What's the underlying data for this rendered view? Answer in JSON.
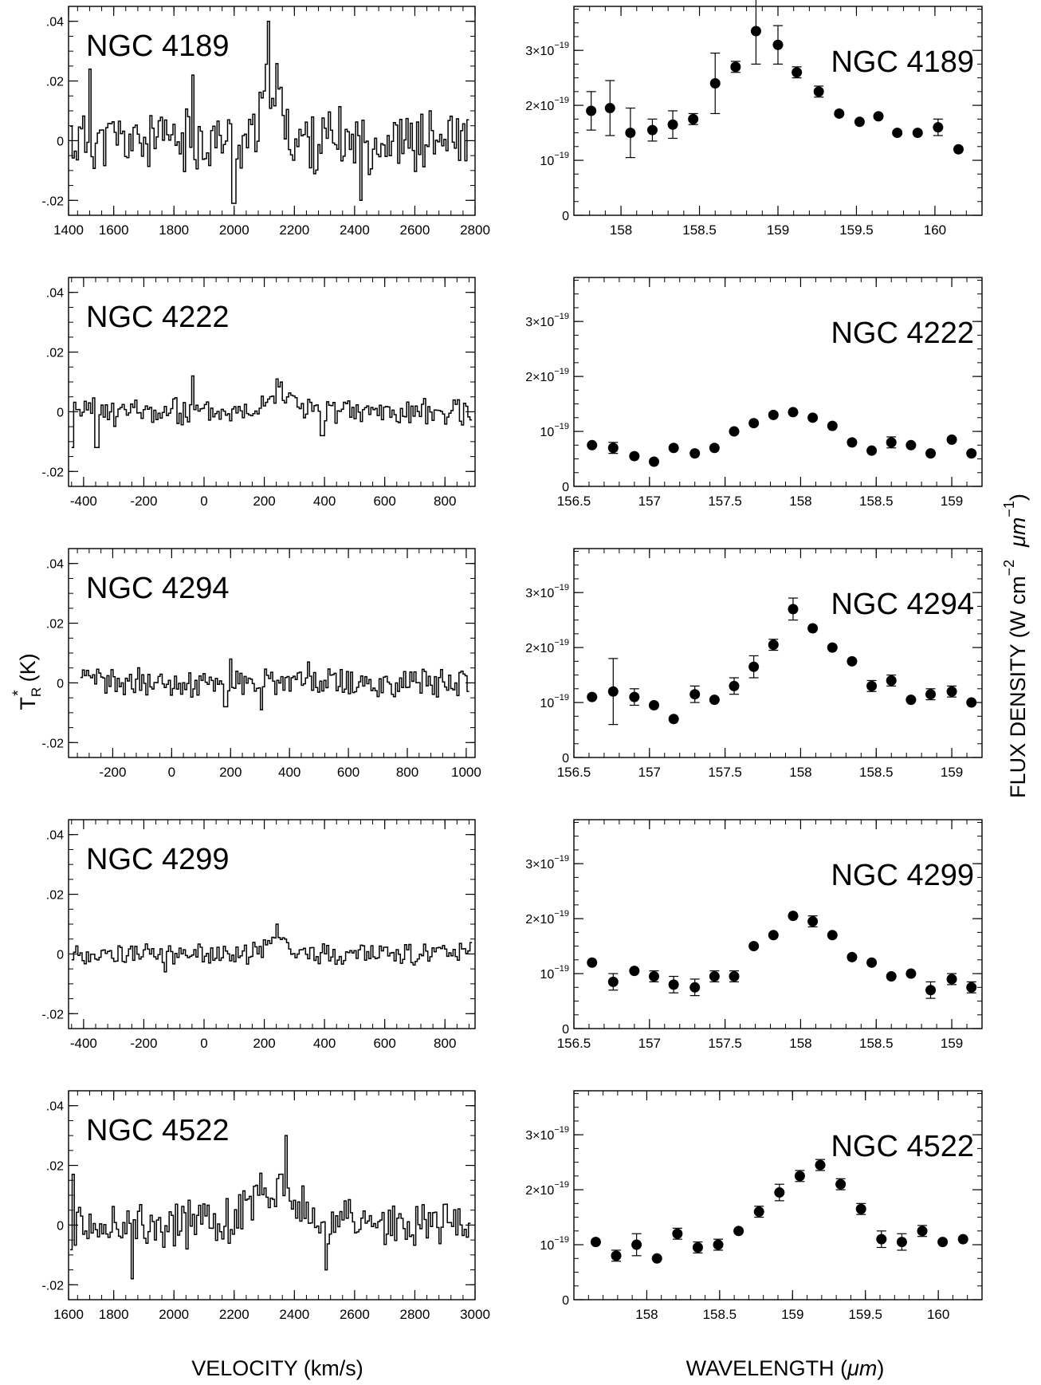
{
  "figure": {
    "left_ylabel_main": "T",
    "left_ylabel_sup": "*",
    "left_ylabel_sub": "R",
    "left_ylabel_unit": "(K)",
    "left_xlabel": "VELOCITY (km/s)",
    "right_xlabel_pre": "WAVELENGTH  (",
    "right_xlabel_mu": "μm",
    "right_xlabel_post": ")",
    "right_ylabel_pre": "FLUX  DENSITY  (W  cm",
    "right_ylabel_sup1": "−2",
    "right_ylabel_mu": "μm",
    "right_ylabel_sup2": "−1",
    "right_ylabel_post": ")"
  },
  "chart_data": [
    {
      "type": "line",
      "name": "NGC 4189",
      "label": "NGC 4189",
      "xlim": [
        1450,
        2800
      ],
      "ylim": [
        -0.025,
        0.045
      ],
      "xticks": [
        1400,
        1600,
        1800,
        2000,
        2200,
        2400,
        2600,
        2800
      ],
      "yticks": [
        {
          "v": 0.04,
          "t": ".04"
        },
        {
          "v": 0.02,
          "t": ".02"
        },
        {
          "v": 0,
          "t": "0"
        },
        {
          "v": -0.02,
          "t": "-.02"
        }
      ],
      "x_start": 1455,
      "x_end": 2780,
      "noise": 0.009,
      "seed": 11,
      "feature": {
        "center": 2120,
        "sigma": 30,
        "amp": 0.02
      },
      "spikes": [
        [
          1995,
          -0.021
        ],
        [
          2110,
          0.04
        ],
        [
          1860,
          0.022
        ],
        [
          2420,
          -0.02
        ],
        [
          1520,
          0.024
        ]
      ]
    },
    {
      "type": "scatter",
      "name": "NGC 4189",
      "label": "NGC 4189",
      "xlim": [
        157.7,
        160.3
      ],
      "ylim": [
        0,
        3.8
      ],
      "xticks": [
        {
          "v": 158,
          "t": "158"
        },
        {
          "v": 158.5,
          "t": "158.5"
        },
        {
          "v": 159,
          "t": "159"
        },
        {
          "v": 159.5,
          "t": "159.5"
        },
        {
          "v": 160,
          "t": "160"
        }
      ],
      "yticks": [
        {
          "v": 0,
          "t": "0"
        },
        {
          "v": 1,
          "m": "10",
          "e": "−19"
        },
        {
          "v": 2,
          "m": "2×10",
          "e": "−19"
        },
        {
          "v": 3,
          "m": "3×10",
          "e": "−19"
        }
      ],
      "x": [
        157.81,
        157.93,
        158.06,
        158.2,
        158.33,
        158.46,
        158.6,
        158.73,
        158.86,
        159.0,
        159.12,
        159.26,
        159.39,
        159.52,
        159.64,
        159.76,
        159.89,
        160.02,
        160.15
      ],
      "y": [
        1.9,
        1.95,
        1.5,
        1.55,
        1.65,
        1.75,
        2.4,
        2.7,
        3.35,
        3.1,
        2.6,
        2.25,
        1.85,
        1.7,
        1.8,
        1.5,
        1.5,
        1.6,
        1.2
      ],
      "yerr": [
        0.35,
        0.5,
        0.45,
        0.2,
        0.25,
        0.1,
        0.55,
        0.1,
        0.6,
        0.35,
        0.1,
        0.1,
        0.05,
        0.05,
        0.05,
        0.05,
        0.05,
        0.15,
        0.05
      ]
    },
    {
      "type": "line",
      "name": "NGC 4222",
      "label": "NGC 4222",
      "xlim": [
        -450,
        900
      ],
      "ylim": [
        -0.025,
        0.045
      ],
      "xticks": [
        -400,
        -200,
        0,
        200,
        400,
        600,
        800
      ],
      "yticks": [
        {
          "v": 0.04,
          "t": ".04"
        },
        {
          "v": 0.02,
          "t": ".02"
        },
        {
          "v": 0,
          "t": "0"
        },
        {
          "v": -0.02,
          "t": "-.02"
        }
      ],
      "x_start": -440,
      "x_end": 890,
      "noise": 0.004,
      "seed": 23,
      "feature": {
        "center": 240,
        "sigma": 60,
        "amp": 0.006
      },
      "spikes": [
        [
          -440,
          -0.012
        ],
        [
          -360,
          -0.012
        ],
        [
          -40,
          0.012
        ],
        [
          240,
          0.011
        ],
        [
          390,
          -0.008
        ]
      ]
    },
    {
      "type": "scatter",
      "name": "NGC 4222",
      "label": "NGC 4222",
      "xlim": [
        156.5,
        159.2
      ],
      "ylim": [
        0,
        3.8
      ],
      "xticks": [
        {
          "v": 156.5,
          "t": "156.5"
        },
        {
          "v": 157,
          "t": "157"
        },
        {
          "v": 157.5,
          "t": "157.5"
        },
        {
          "v": 158,
          "t": "158"
        },
        {
          "v": 158.5,
          "t": "158.5"
        },
        {
          "v": 159,
          "t": "159"
        }
      ],
      "yticks": [
        {
          "v": 0,
          "t": "0"
        },
        {
          "v": 1,
          "m": "10",
          "e": "−19"
        },
        {
          "v": 2,
          "m": "2×10",
          "e": "−19"
        },
        {
          "v": 3,
          "m": "3×10",
          "e": "−19"
        }
      ],
      "x": [
        156.62,
        156.76,
        156.9,
        157.03,
        157.16,
        157.3,
        157.43,
        157.56,
        157.69,
        157.82,
        157.95,
        158.08,
        158.21,
        158.34,
        158.47,
        158.6,
        158.73,
        158.86,
        159.0,
        159.13
      ],
      "y": [
        0.75,
        0.7,
        0.55,
        0.45,
        0.7,
        0.6,
        0.7,
        1.0,
        1.15,
        1.3,
        1.35,
        1.25,
        1.1,
        0.8,
        0.65,
        0.8,
        0.75,
        0.6,
        0.85,
        0.6
      ],
      "yerr": [
        0.05,
        0.1,
        0.05,
        0.05,
        0.05,
        0.05,
        0.05,
        0.05,
        0.05,
        0.05,
        0.05,
        0.05,
        0.05,
        0.05,
        0.05,
        0.1,
        0.05,
        0.05,
        0.05,
        0.05
      ]
    },
    {
      "type": "line",
      "name": "NGC 4294",
      "label": "NGC 4294",
      "xlim": [
        -350,
        1030
      ],
      "ylim": [
        -0.025,
        0.045
      ],
      "xticks": [
        -200,
        0,
        200,
        400,
        600,
        800,
        1000
      ],
      "yticks": [
        {
          "v": 0.04,
          "t": ".04"
        },
        {
          "v": 0.02,
          "t": ".02"
        },
        {
          "v": 0,
          "t": "0"
        },
        {
          "v": -0.02,
          "t": "-.02"
        }
      ],
      "x_start": -310,
      "x_end": 1010,
      "noise": 0.004,
      "seed": 37,
      "feature": {
        "center": 350,
        "sigma": 40,
        "amp": 0.001
      },
      "spikes": [
        [
          195,
          0.008
        ],
        [
          300,
          -0.009
        ],
        [
          460,
          0.007
        ],
        [
          180,
          -0.008
        ]
      ]
    },
    {
      "type": "scatter",
      "name": "NGC 4294",
      "label": "NGC 4294",
      "xlim": [
        156.5,
        159.2
      ],
      "ylim": [
        0,
        3.8
      ],
      "xticks": [
        {
          "v": 156.5,
          "t": "156.5"
        },
        {
          "v": 157,
          "t": "157"
        },
        {
          "v": 157.5,
          "t": "157.5"
        },
        {
          "v": 158,
          "t": "158"
        },
        {
          "v": 158.5,
          "t": "158.5"
        },
        {
          "v": 159,
          "t": "159"
        }
      ],
      "yticks": [
        {
          "v": 0,
          "t": "0"
        },
        {
          "v": 1,
          "m": "10",
          "e": "−19"
        },
        {
          "v": 2,
          "m": "2×10",
          "e": "−19"
        },
        {
          "v": 3,
          "m": "3×10",
          "e": "−19"
        }
      ],
      "x": [
        156.62,
        156.76,
        156.9,
        157.03,
        157.16,
        157.3,
        157.43,
        157.56,
        157.69,
        157.82,
        157.95,
        158.08,
        158.21,
        158.34,
        158.47,
        158.6,
        158.73,
        158.86,
        159.0,
        159.13
      ],
      "y": [
        1.1,
        1.2,
        1.1,
        0.95,
        0.7,
        1.15,
        1.05,
        1.3,
        1.65,
        2.05,
        2.7,
        2.35,
        2.0,
        1.75,
        1.3,
        1.4,
        1.05,
        1.15,
        1.2,
        1.0
      ],
      "yerr": [
        0.05,
        0.6,
        0.15,
        0.05,
        0.05,
        0.15,
        0.05,
        0.15,
        0.2,
        0.1,
        0.2,
        0.05,
        0.05,
        0.05,
        0.1,
        0.1,
        0.05,
        0.1,
        0.1,
        0.05
      ]
    },
    {
      "type": "line",
      "name": "NGC 4299",
      "label": "NGC 4299",
      "xlim": [
        -450,
        900
      ],
      "ylim": [
        -0.025,
        0.045
      ],
      "xticks": [
        -400,
        -200,
        0,
        200,
        400,
        600,
        800
      ],
      "yticks": [
        {
          "v": 0.04,
          "t": ".04"
        },
        {
          "v": 0.02,
          "t": ".02"
        },
        {
          "v": 0,
          "t": "0"
        },
        {
          "v": -0.02,
          "t": "-.02"
        }
      ],
      "x_start": -440,
      "x_end": 890,
      "noise": 0.003,
      "seed": 53,
      "feature": {
        "center": 240,
        "sigma": 35,
        "amp": 0.005
      },
      "spikes": [
        [
          240,
          0.01
        ],
        [
          -130,
          -0.006
        ]
      ]
    },
    {
      "type": "scatter",
      "name": "NGC 4299",
      "label": "NGC 4299",
      "xlim": [
        156.5,
        159.2
      ],
      "ylim": [
        0,
        3.8
      ],
      "xticks": [
        {
          "v": 156.5,
          "t": "156.5"
        },
        {
          "v": 157,
          "t": "157"
        },
        {
          "v": 157.5,
          "t": "157.5"
        },
        {
          "v": 158,
          "t": "158"
        },
        {
          "v": 158.5,
          "t": "158.5"
        },
        {
          "v": 159,
          "t": "159"
        }
      ],
      "yticks": [
        {
          "v": 0,
          "t": "0"
        },
        {
          "v": 1,
          "m": "10",
          "e": "−19"
        },
        {
          "v": 2,
          "m": "2×10",
          "e": "−19"
        },
        {
          "v": 3,
          "m": "3×10",
          "e": "−19"
        }
      ],
      "x": [
        156.62,
        156.76,
        156.9,
        157.03,
        157.16,
        157.3,
        157.43,
        157.56,
        157.69,
        157.82,
        157.95,
        158.08,
        158.21,
        158.34,
        158.47,
        158.6,
        158.73,
        158.86,
        159.0,
        159.13
      ],
      "y": [
        1.2,
        0.85,
        1.05,
        0.95,
        0.8,
        0.75,
        0.95,
        0.95,
        1.5,
        1.7,
        2.05,
        1.95,
        1.7,
        1.3,
        1.2,
        0.95,
        1.0,
        0.7,
        0.9,
        0.75
      ],
      "yerr": [
        0.05,
        0.15,
        0.05,
        0.1,
        0.15,
        0.15,
        0.1,
        0.1,
        0.05,
        0.05,
        0.05,
        0.1,
        0.05,
        0.05,
        0.05,
        0.05,
        0.05,
        0.15,
        0.1,
        0.1
      ]
    },
    {
      "type": "line",
      "name": "NGC 4522",
      "label": "NGC 4522",
      "xlim": [
        1650,
        3000
      ],
      "ylim": [
        -0.025,
        0.045
      ],
      "xticks": [
        1600,
        1800,
        2000,
        2200,
        2400,
        2600,
        2800,
        3000
      ],
      "yticks": [
        {
          "v": 0.04,
          "t": ".04"
        },
        {
          "v": 0.02,
          "t": ".02"
        },
        {
          "v": 0,
          "t": "0"
        },
        {
          "v": -0.02,
          "t": "-.02"
        }
      ],
      "x_start": 1655,
      "x_end": 2985,
      "noise": 0.007,
      "seed": 71,
      "feature": {
        "center": 2340,
        "sigma": 80,
        "amp": 0.014
      },
      "spikes": [
        [
          1660,
          0.017
        ],
        [
          1860,
          -0.018
        ],
        [
          2370,
          0.03
        ],
        [
          2500,
          -0.015
        ]
      ]
    },
    {
      "type": "scatter",
      "name": "NGC 4522",
      "label": "NGC 4522",
      "xlim": [
        157.5,
        160.3
      ],
      "ylim": [
        0,
        3.8
      ],
      "xticks": [
        {
          "v": 158,
          "t": "158"
        },
        {
          "v": 158.5,
          "t": "158.5"
        },
        {
          "v": 159,
          "t": "159"
        },
        {
          "v": 159.5,
          "t": "159.5"
        },
        {
          "v": 160,
          "t": "160"
        }
      ],
      "yticks": [
        {
          "v": 0,
          "t": "0"
        },
        {
          "v": 1,
          "m": "10",
          "e": "−19"
        },
        {
          "v": 2,
          "m": "2×10",
          "e": "−19"
        },
        {
          "v": 3,
          "m": "3×10",
          "e": "−19"
        }
      ],
      "x": [
        157.65,
        157.79,
        157.93,
        158.07,
        158.21,
        158.35,
        158.49,
        158.63,
        158.77,
        158.91,
        159.05,
        159.19,
        159.33,
        159.47,
        159.61,
        159.75,
        159.89,
        160.03,
        160.17
      ],
      "y": [
        1.05,
        0.8,
        1.0,
        0.75,
        1.2,
        0.95,
        1.0,
        1.25,
        1.6,
        1.95,
        2.25,
        2.45,
        2.1,
        1.65,
        1.1,
        1.05,
        1.25,
        1.05,
        1.1
      ],
      "yerr": [
        0.05,
        0.1,
        0.2,
        0.05,
        0.1,
        0.1,
        0.1,
        0.05,
        0.1,
        0.15,
        0.1,
        0.1,
        0.1,
        0.1,
        0.15,
        0.15,
        0.1,
        0.05,
        0.05
      ]
    }
  ]
}
